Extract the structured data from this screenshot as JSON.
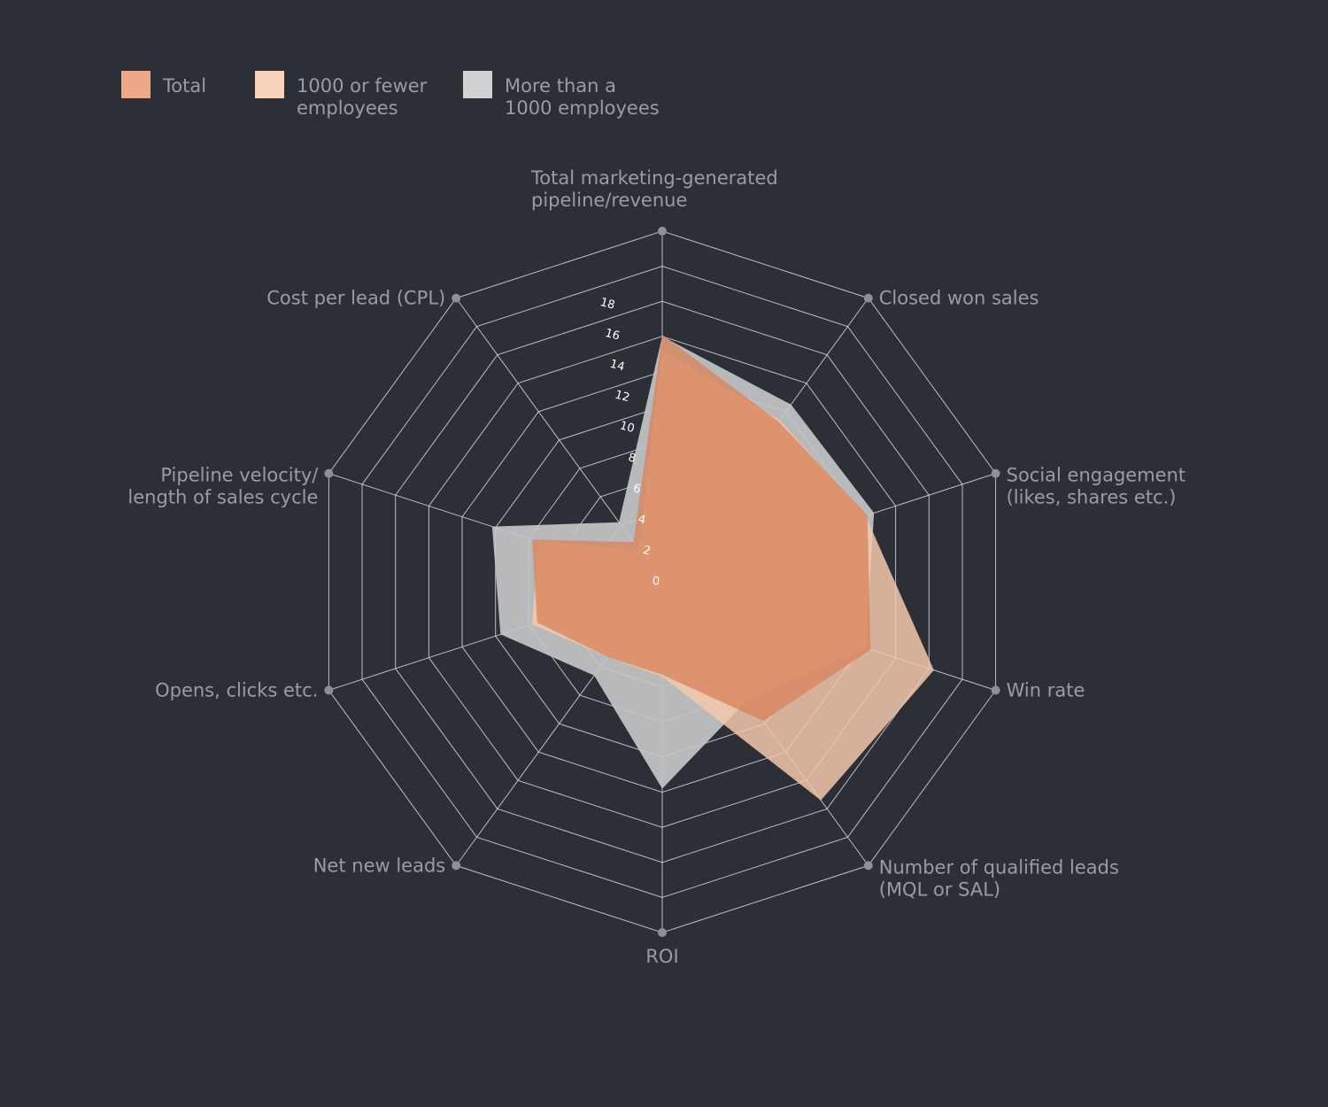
{
  "chart_data": {
    "type": "radar",
    "title": "",
    "legend": [
      {
        "label": "Total",
        "color": "#efa988"
      },
      {
        "label": "1000 or fewer employees",
        "color": "#f8d3bd"
      },
      {
        "label": "More than a 1000 employees",
        "color": "#d0d1d3"
      }
    ],
    "legend_lines": [
      [
        "Total"
      ],
      [
        "1000 or fewer",
        "employees"
      ],
      [
        "More than a",
        "1000 employees"
      ]
    ],
    "axes": [
      {
        "label": [
          "Total marketing-generated",
          "pipeline/revenue"
        ]
      },
      {
        "label": [
          "Closed won sales"
        ]
      },
      {
        "label": [
          "Social engagement",
          "(likes, shares etc.)"
        ]
      },
      {
        "label": [
          "Win rate"
        ]
      },
      {
        "label": [
          "Number of qualified leads",
          "(MQL or SAL)"
        ]
      },
      {
        "label": [
          "ROI"
        ]
      },
      {
        "label": [
          "Net new leads"
        ]
      },
      {
        "label": [
          "Opens, clicks etc."
        ]
      },
      {
        "label": [
          "Pipeline velocity/",
          "length of sales cycle"
        ]
      },
      {
        "label": [
          "Cost per lead (CPL)"
        ]
      }
    ],
    "ticks": [
      0,
      2,
      4,
      6,
      8,
      10,
      12,
      14,
      16,
      18
    ],
    "range": [
      0,
      20
    ],
    "series": [
      {
        "name": "More than a 1000 employees",
        "color": "#c4c5c7",
        "values": [
          14,
          12.5,
          12.7,
          12.2,
          8.3,
          11.8,
          6.6,
          9.7,
          10.2,
          4.2
        ]
      },
      {
        "name": "1000 or fewer employees",
        "color": "#f3c8ad",
        "values": [
          13.2,
          11.4,
          12.2,
          16.3,
          15.4,
          5.4,
          5.3,
          7.8,
          7.4,
          2.3
        ]
      },
      {
        "name": "Total",
        "color": "#d9845c",
        "values": [
          14.1,
          11.3,
          12.3,
          12.5,
          9.8,
          5.3,
          5.3,
          7.5,
          7.8,
          2.8
        ]
      }
    ]
  }
}
